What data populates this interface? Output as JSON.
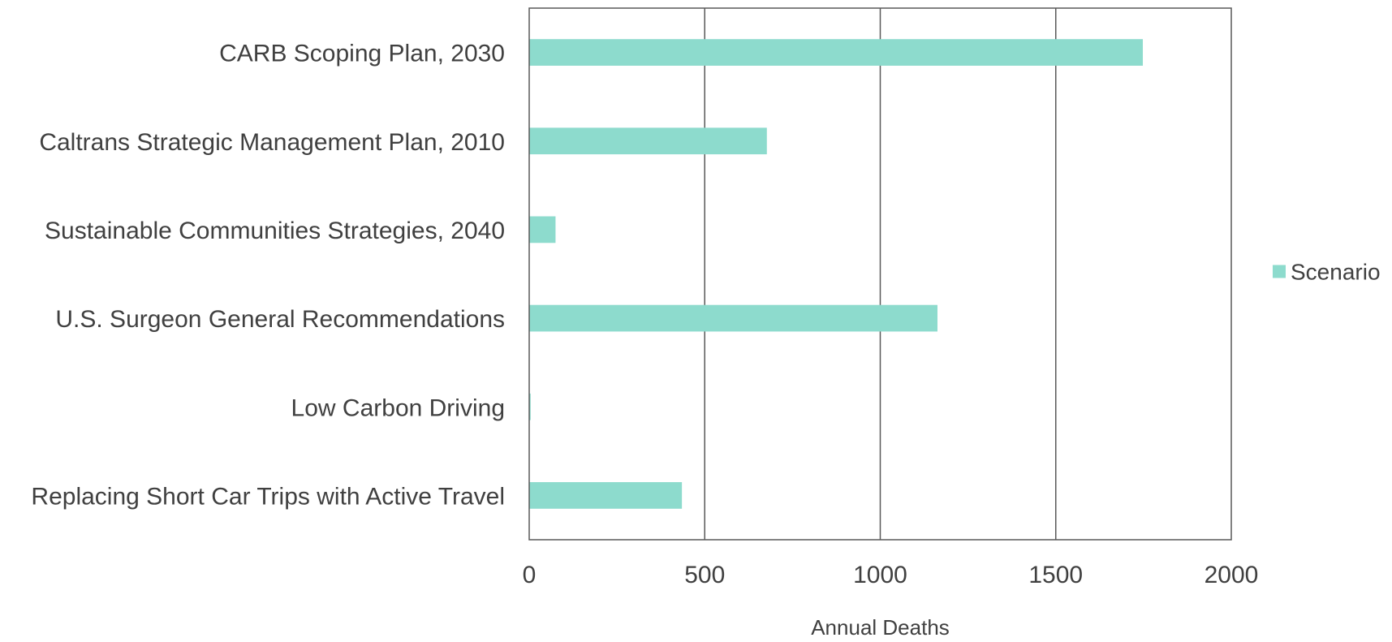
{
  "chart_data": {
    "type": "bar",
    "orientation": "horizontal",
    "categories": [
      "CARB Scoping Plan, 2030",
      "Caltrans Strategic Management Plan, 2010",
      "Sustainable Communities Strategies, 2040",
      "U.S. Surgeon General Recommendations",
      "Low Carbon Driving",
      "Replacing Short Car Trips with Active Travel"
    ],
    "series": [
      {
        "name": "Scenario",
        "values": [
          1748,
          677,
          75,
          1163,
          4,
          435
        ]
      }
    ],
    "xlabel": "Annual Deaths",
    "ylabel": "",
    "xlim": [
      0,
      2000
    ],
    "xticks": [
      0,
      500,
      1000,
      1500,
      2000
    ],
    "grid": true,
    "legend": "right",
    "colors": {
      "bar": "#8ddbcd",
      "grid": "#595959",
      "text": "#404040"
    }
  }
}
